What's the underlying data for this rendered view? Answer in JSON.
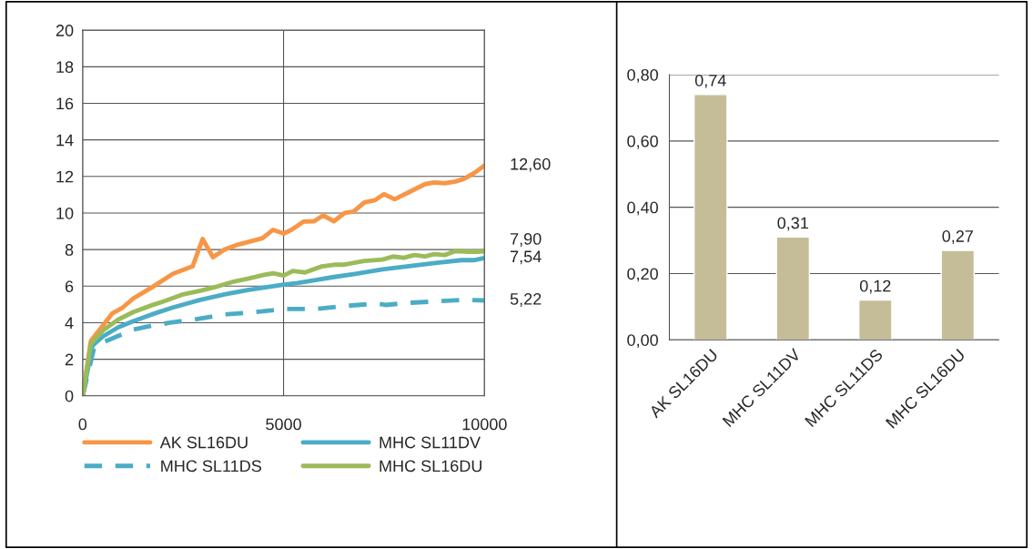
{
  "chart_data": [
    {
      "type": "line",
      "xlim": [
        0,
        10000
      ],
      "xticks": [
        0,
        5000,
        10000
      ],
      "ylim": [
        0,
        20
      ],
      "yticks": [
        0,
        2,
        4,
        6,
        8,
        10,
        12,
        14,
        16,
        18,
        20
      ],
      "grid": true,
      "legend": "bottom",
      "marker": "none",
      "series": [
        {
          "name": "AK SL16DU",
          "color": "#f79646",
          "line_style": "solid",
          "x": [
            0,
            204,
            733,
            998,
            1262,
            1716,
            2245,
            2737,
            2986,
            3243,
            3530,
            3833,
            4476,
            4740,
            5005,
            5194,
            5496,
            5761,
            5988,
            6252,
            6517,
            6743,
            7008,
            7272,
            7499,
            7764,
            8066,
            8520,
            8747,
            9011,
            9276,
            9503,
            9768,
            10000
          ],
          "values": [
            0,
            3.0,
            4.5,
            4.83,
            5.33,
            5.92,
            6.67,
            7.08,
            8.58,
            7.58,
            8.0,
            8.25,
            8.62,
            9.08,
            8.88,
            9.08,
            9.53,
            9.55,
            9.87,
            9.55,
            10.0,
            10.08,
            10.58,
            10.7,
            11.03,
            10.75,
            11.08,
            11.58,
            11.67,
            11.63,
            11.72,
            11.88,
            12.22,
            12.6
          ],
          "value_labels": [
            null,
            null,
            null,
            null,
            null,
            null,
            null,
            null,
            null,
            null,
            null,
            null,
            null,
            null,
            null,
            null,
            null,
            null,
            null,
            null,
            null,
            null,
            null,
            null,
            null,
            null,
            null,
            null,
            null,
            null,
            null,
            null,
            null,
            "12,60"
          ]
        },
        {
          "name": "MHC SL11DV",
          "color": "#4bacc6",
          "line_style": "solid",
          "x": [
            0,
            242,
            507,
            885,
            1262,
            1716,
            2245,
            2926,
            3530,
            4135,
            4740,
            5005,
            5345,
            5798,
            6252,
            6781,
            7461,
            8066,
            8822,
            9427,
            9730,
            10000
          ],
          "values": [
            0,
            2.75,
            3.25,
            3.75,
            4.08,
            4.45,
            4.83,
            5.25,
            5.55,
            5.8,
            6.0,
            6.08,
            6.17,
            6.33,
            6.5,
            6.67,
            6.92,
            7.08,
            7.28,
            7.42,
            7.42,
            7.54
          ],
          "value_labels": [
            null,
            null,
            null,
            null,
            null,
            null,
            null,
            null,
            null,
            null,
            null,
            null,
            null,
            null,
            null,
            null,
            null,
            null,
            null,
            null,
            null,
            "7,54"
          ]
        },
        {
          "name": "MHC SL11DS",
          "color": "#4bacc6",
          "line_style": "dashed",
          "x": [
            0,
            280,
            507,
            885,
            1262,
            1716,
            2170,
            2775,
            3530,
            4287,
            5043,
            5798,
            6554,
            7310,
            7537,
            8066,
            8822,
            9503,
            10000
          ],
          "values": [
            0,
            2.58,
            2.92,
            3.28,
            3.62,
            3.83,
            4.0,
            4.17,
            4.45,
            4.58,
            4.75,
            4.75,
            4.92,
            5.05,
            4.97,
            5.08,
            5.17,
            5.25,
            5.22
          ],
          "value_labels": [
            null,
            null,
            null,
            null,
            null,
            null,
            null,
            null,
            null,
            null,
            null,
            null,
            null,
            null,
            null,
            null,
            null,
            null,
            "5,22"
          ]
        },
        {
          "name": "MHC SL16DU",
          "color": "#9bbb59",
          "line_style": "solid",
          "x": [
            0,
            204,
            507,
            885,
            1262,
            1716,
            2018,
            2472,
            2926,
            3379,
            3757,
            4135,
            4513,
            4740,
            5005,
            5231,
            5534,
            5950,
            6252,
            6479,
            7008,
            7461,
            7726,
            7991,
            8256,
            8520,
            8747,
            9011,
            9276,
            9579,
            9806,
            10000
          ],
          "values": [
            0,
            2.83,
            3.58,
            4.17,
            4.58,
            4.95,
            5.17,
            5.53,
            5.75,
            6.0,
            6.25,
            6.42,
            6.62,
            6.7,
            6.58,
            6.83,
            6.75,
            7.08,
            7.17,
            7.17,
            7.38,
            7.45,
            7.62,
            7.55,
            7.7,
            7.63,
            7.75,
            7.7,
            7.92,
            7.88,
            7.88,
            7.9
          ],
          "value_labels": [
            null,
            null,
            null,
            null,
            null,
            null,
            null,
            null,
            null,
            null,
            null,
            null,
            null,
            null,
            null,
            null,
            null,
            null,
            null,
            null,
            null,
            null,
            null,
            null,
            null,
            null,
            null,
            null,
            null,
            null,
            null,
            "7,90"
          ]
        }
      ]
    },
    {
      "type": "bar",
      "categories": [
        "AK SL16DU",
        "MHC SL11DV",
        "MHC SL11DS",
        "MHC SL16DU"
      ],
      "values": [
        0.74,
        0.31,
        0.12,
        0.27
      ],
      "color": "#c4bd97",
      "value_labels": [
        "0,74",
        "0,31",
        "0,12",
        "0,27"
      ],
      "ylim": [
        0,
        0.8
      ],
      "yticks": [
        {
          "value": 0,
          "label": "0,00"
        },
        {
          "value": 0.2,
          "label": "0,20"
        },
        {
          "value": 0.4,
          "label": "0,40"
        },
        {
          "value": 0.6,
          "label": "0,60"
        },
        {
          "value": 0.8,
          "label": "0,80"
        }
      ],
      "grid": "y"
    }
  ]
}
